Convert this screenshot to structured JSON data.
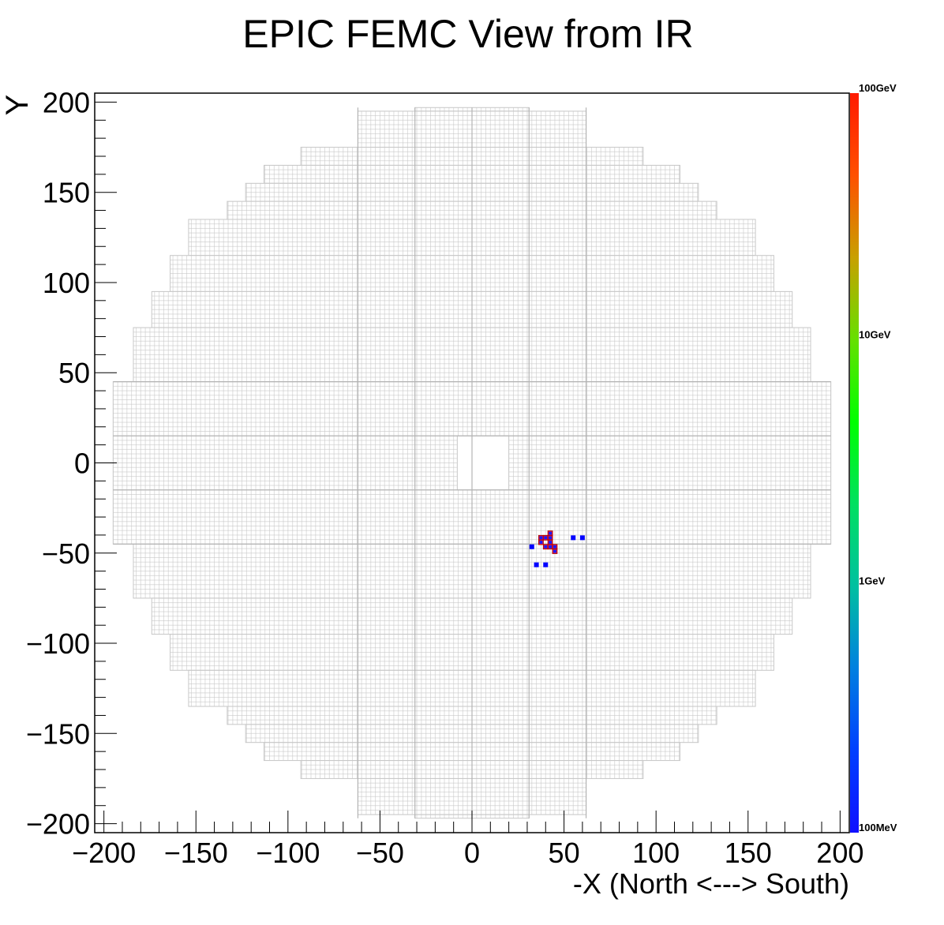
{
  "chart_data": {
    "type": "heatmap",
    "title": "EPIC FEMC View from IR",
    "xlabel": "-X (North <---> South)",
    "ylabel": "Y",
    "xlim": [
      -205,
      205
    ],
    "ylim": [
      -205,
      205
    ],
    "x_ticks": [
      -200,
      -150,
      -100,
      -50,
      0,
      50,
      100,
      150,
      200
    ],
    "x_tick_labels": [
      "−200",
      "−150",
      "−100",
      "−50",
      "0",
      "50",
      "100",
      "150",
      "200"
    ],
    "y_ticks": [
      -200,
      -150,
      -100,
      -50,
      0,
      50,
      100,
      150,
      200
    ],
    "y_tick_labels": [
      "−200",
      "−150",
      "−100",
      "−50",
      "0",
      "50",
      "100",
      "150",
      "200"
    ],
    "detector": {
      "cell_size": 2.5,
      "outline_color": "#c8c8c8",
      "beam_hole": {
        "x": [
          -8,
          20
        ],
        "y": [
          -15,
          15
        ]
      },
      "rows": [
        {
          "y": [
            195,
            197
          ],
          "x": [
            -31,
            31
          ]
        },
        {
          "y": [
            175,
            195
          ],
          "x": [
            -62,
            62
          ]
        },
        {
          "y": [
            165,
            175
          ],
          "x": [
            -93,
            93
          ]
        },
        {
          "y": [
            155,
            165
          ],
          "x": [
            -113,
            113
          ]
        },
        {
          "y": [
            145,
            155
          ],
          "x": [
            -123,
            123
          ]
        },
        {
          "y": [
            135,
            145
          ],
          "x": [
            -133,
            133
          ]
        },
        {
          "y": [
            115,
            135
          ],
          "x": [
            -154,
            154
          ]
        },
        {
          "y": [
            95,
            115
          ],
          "x": [
            -164,
            164
          ]
        },
        {
          "y": [
            75,
            95
          ],
          "x": [
            -174,
            174
          ]
        },
        {
          "y": [
            45,
            75
          ],
          "x": [
            -184,
            184
          ]
        },
        {
          "y": [
            -45,
            45
          ],
          "x": [
            -195,
            195
          ]
        },
        {
          "y": [
            -75,
            -45
          ],
          "x": [
            -184,
            184
          ]
        },
        {
          "y": [
            -95,
            -75
          ],
          "x": [
            -174,
            174
          ]
        },
        {
          "y": [
            -115,
            -95
          ],
          "x": [
            -164,
            164
          ]
        },
        {
          "y": [
            -135,
            -115
          ],
          "x": [
            -154,
            154
          ]
        },
        {
          "y": [
            -145,
            -135
          ],
          "x": [
            -133,
            133
          ]
        },
        {
          "y": [
            -155,
            -145
          ],
          "x": [
            -123,
            123
          ]
        },
        {
          "y": [
            -165,
            -155
          ],
          "x": [
            -113,
            113
          ]
        },
        {
          "y": [
            -175,
            -165
          ],
          "x": [
            -93,
            93
          ]
        },
        {
          "y": [
            -195,
            -175
          ],
          "x": [
            -62,
            62
          ]
        },
        {
          "y": [
            -197,
            -195
          ],
          "x": [
            -31,
            31
          ]
        }
      ]
    },
    "hits": [
      {
        "x": 37.5,
        "y": -41.5,
        "energy_level": "high"
      },
      {
        "x": 40.0,
        "y": -41.5,
        "energy_level": "high"
      },
      {
        "x": 42.5,
        "y": -39.0,
        "energy_level": "high"
      },
      {
        "x": 42.5,
        "y": -41.5,
        "energy_level": "high"
      },
      {
        "x": 37.5,
        "y": -44.0,
        "energy_level": "high"
      },
      {
        "x": 42.5,
        "y": -44.0,
        "energy_level": "high"
      },
      {
        "x": 40.0,
        "y": -46.5,
        "energy_level": "high"
      },
      {
        "x": 42.5,
        "y": -46.5,
        "energy_level": "high"
      },
      {
        "x": 45.0,
        "y": -46.5,
        "energy_level": "high"
      },
      {
        "x": 45.0,
        "y": -49.0,
        "energy_level": "high"
      },
      {
        "x": 32.5,
        "y": -46.5,
        "energy_level": "low"
      },
      {
        "x": 35.0,
        "y": -56.5,
        "energy_level": "low"
      },
      {
        "x": 40.0,
        "y": -56.5,
        "energy_level": "low"
      },
      {
        "x": 55.0,
        "y": -41.5,
        "energy_level": "low"
      },
      {
        "x": 60.0,
        "y": -41.5,
        "energy_level": "low"
      }
    ],
    "colorbar": {
      "scale": "log",
      "labels": [
        "100GeV",
        "10GeV",
        "1GeV",
        "100MeV"
      ],
      "gradient": [
        "#ff1a00",
        "#ff5000",
        "#c8a000",
        "#66e000",
        "#00ff00",
        "#00e060",
        "#00c0a0",
        "#0080e0",
        "#0040ff",
        "#1010ff"
      ]
    },
    "colors": {
      "high_fill": "#ff1a1a",
      "high_center": "#1a1aff",
      "low_fill": "#0000ff",
      "axis": "#000000"
    },
    "grid": false,
    "legend": "none"
  }
}
